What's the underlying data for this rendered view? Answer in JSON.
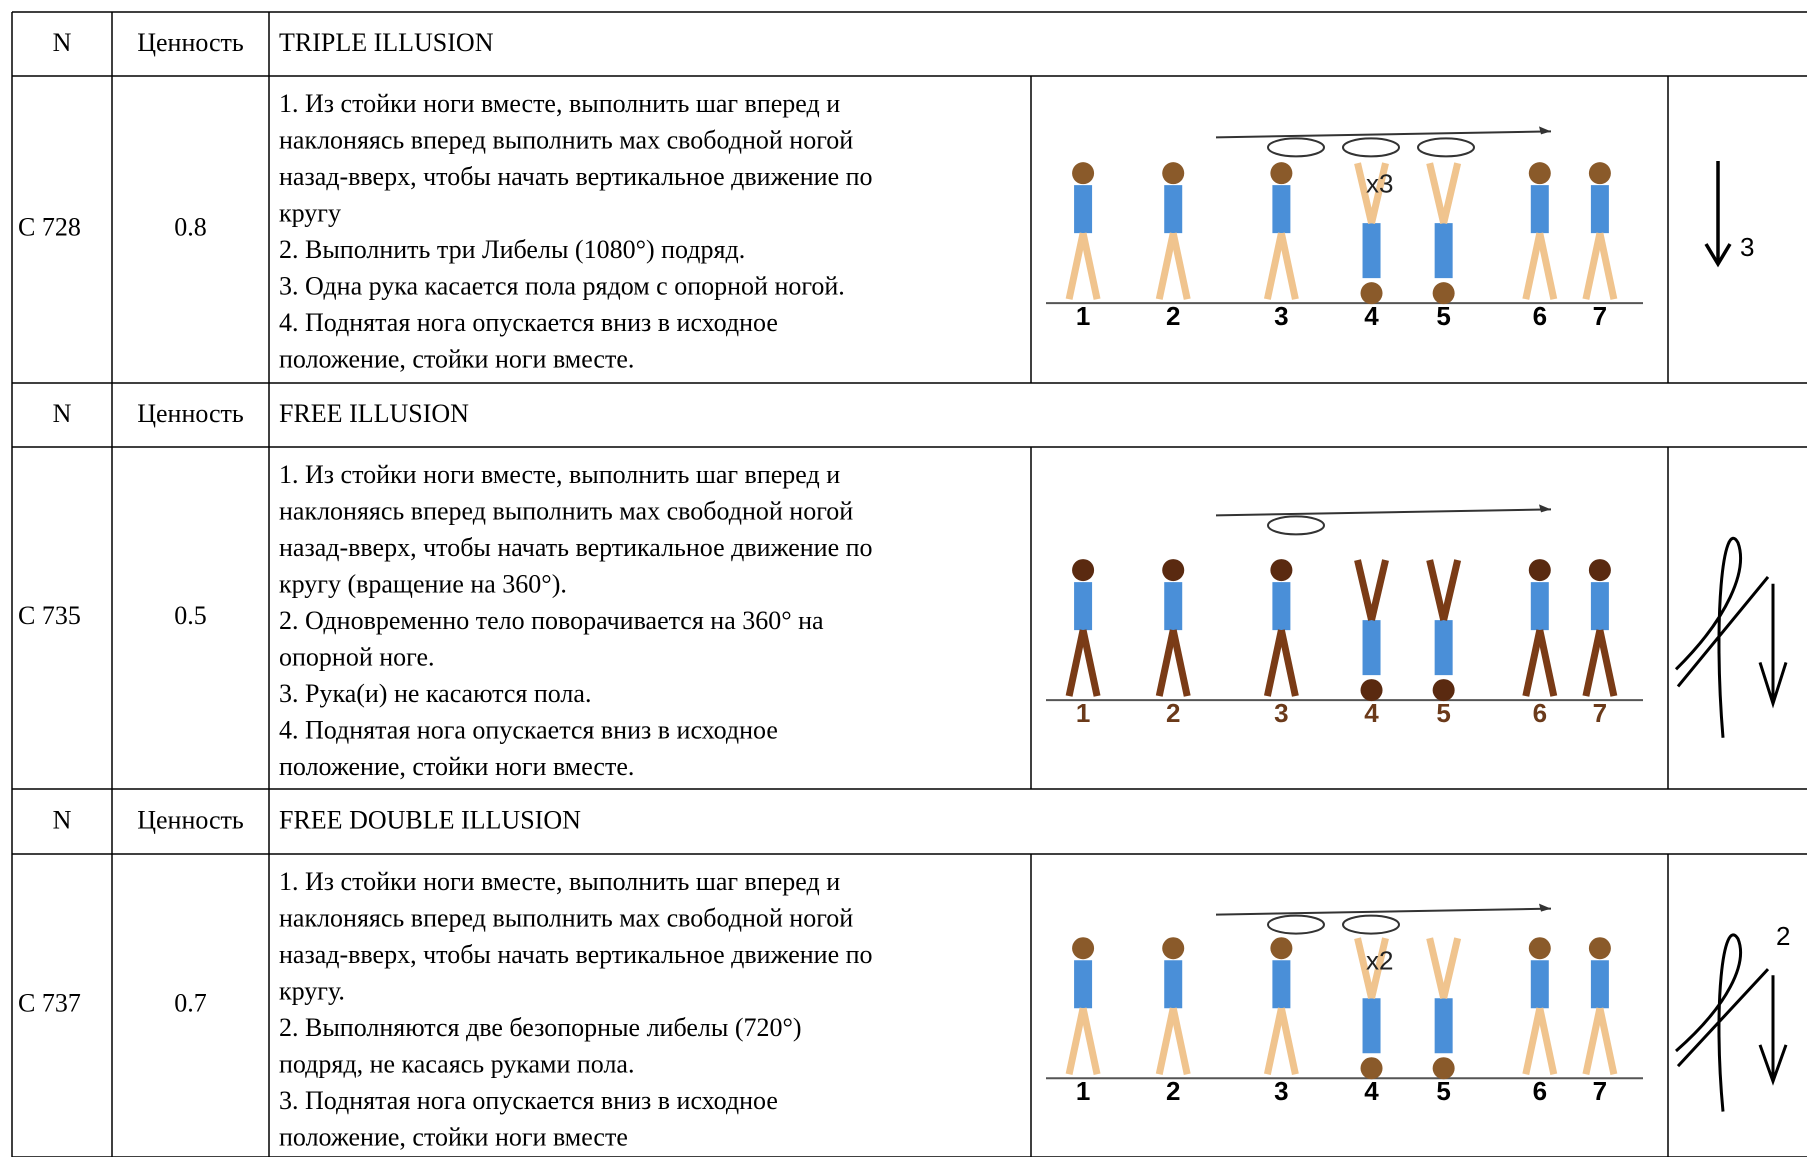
{
  "sections": [
    {
      "header": {
        "n": "N",
        "value": "Ценность",
        "title": "TRIPLE ILLUSION"
      },
      "code": "C 728",
      "value": "0.8",
      "description": [
        "1. Из стойки ноги вместе, выполнить шаг вперед и",
        "наклоняясь вперед выполнить мах свободной ногой",
        "назад-вверх, чтобы начать вертикальное движение по",
        "кругу",
        "2. Выполнить три Либелы (1080°) подряд.",
        "3. Одна рука касается пола рядом с опорной ногой.",
        "4. Поднятая нога опускается вниз в исходное",
        "положение, стойки ноги вместе."
      ],
      "figure": {
        "multiplier": "x3",
        "steps": [
          "1",
          "2",
          "3",
          "4",
          "5",
          "6",
          "7"
        ]
      },
      "symbol": "3"
    },
    {
      "header": {
        "n": "N",
        "value": "Ценность",
        "title": "FREE ILLUSION"
      },
      "code": "C 735",
      "value": "0.5",
      "description": [
        "1. Из стойки ноги вместе, выполнить шаг вперед и",
        "наклоняясь вперед выполнить мах свободной ногой",
        "назад-вверх, чтобы начать вертикальное движение по",
        "кругу (вращение на 360°).",
        "2. Одновременно тело поворачивается на 360° на",
        "опорной ноге.",
        "3. Рука(и) не касаются пола.",
        "4. Поднятая нога опускается вниз в исходное",
        "положение, стойки ноги вместе."
      ],
      "figure": {
        "steps": [
          "1",
          "2",
          "3",
          "4",
          "5",
          "6",
          "7"
        ]
      }
    },
    {
      "header": {
        "n": "N",
        "value": "Ценность",
        "title": "FREE DOUBLE ILLUSION"
      },
      "code": "C 737",
      "value": "0.7",
      "description": [
        "1. Из стойки ноги вместе, выполнить шаг вперед и",
        "наклоняясь вперед выполнить мах свободной ногой",
        "назад-вверх, чтобы начать вертикальное движение по",
        "кругу.",
        "2. Выполняются две безопорные либелы (720°)",
        "подряд, не касаясь руками пола.",
        "3. Поднятая нога опускается вниз в исходное",
        "положение, стойки ноги вместе"
      ],
      "figure": {
        "multiplier": "x2",
        "steps": [
          "1",
          "2",
          "3",
          "4",
          "5",
          "6",
          "7"
        ]
      },
      "symbol": "2"
    }
  ]
}
